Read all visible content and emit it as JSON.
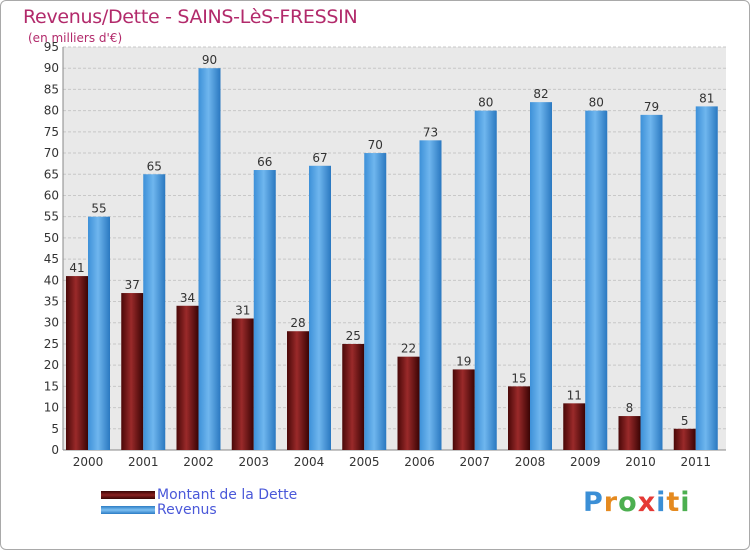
{
  "chart_data": {
    "type": "bar",
    "title": "Revenus/Dette - SAINS-LèS-FRESSIN",
    "subtitle": "(en milliers d'€)",
    "categories": [
      "2000",
      "2001",
      "2002",
      "2003",
      "2004",
      "2005",
      "2006",
      "2007",
      "2008",
      "2009",
      "2010",
      "2011"
    ],
    "series": [
      {
        "name": "Montant de la Dette",
        "color": "#7a1a1a",
        "values": [
          41,
          37,
          34,
          31,
          28,
          25,
          22,
          19,
          15,
          11,
          8,
          5
        ]
      },
      {
        "name": "Revenus",
        "color": "#4a9de0",
        "values": [
          55,
          65,
          90,
          66,
          67,
          70,
          73,
          80,
          82,
          80,
          79,
          81
        ]
      }
    ],
    "ylim": [
      0,
      95
    ],
    "ytick_step": 5,
    "grid": true,
    "legend_position": "bottom-left"
  },
  "logo": {
    "letters": [
      "P",
      "r",
      "o",
      "x",
      "i",
      "t",
      "i"
    ],
    "colors": [
      "#3b8fd6",
      "#e58a1f",
      "#4caf50",
      "#e53935",
      "#3b8fd6",
      "#e58a1f",
      "#4caf50"
    ]
  }
}
